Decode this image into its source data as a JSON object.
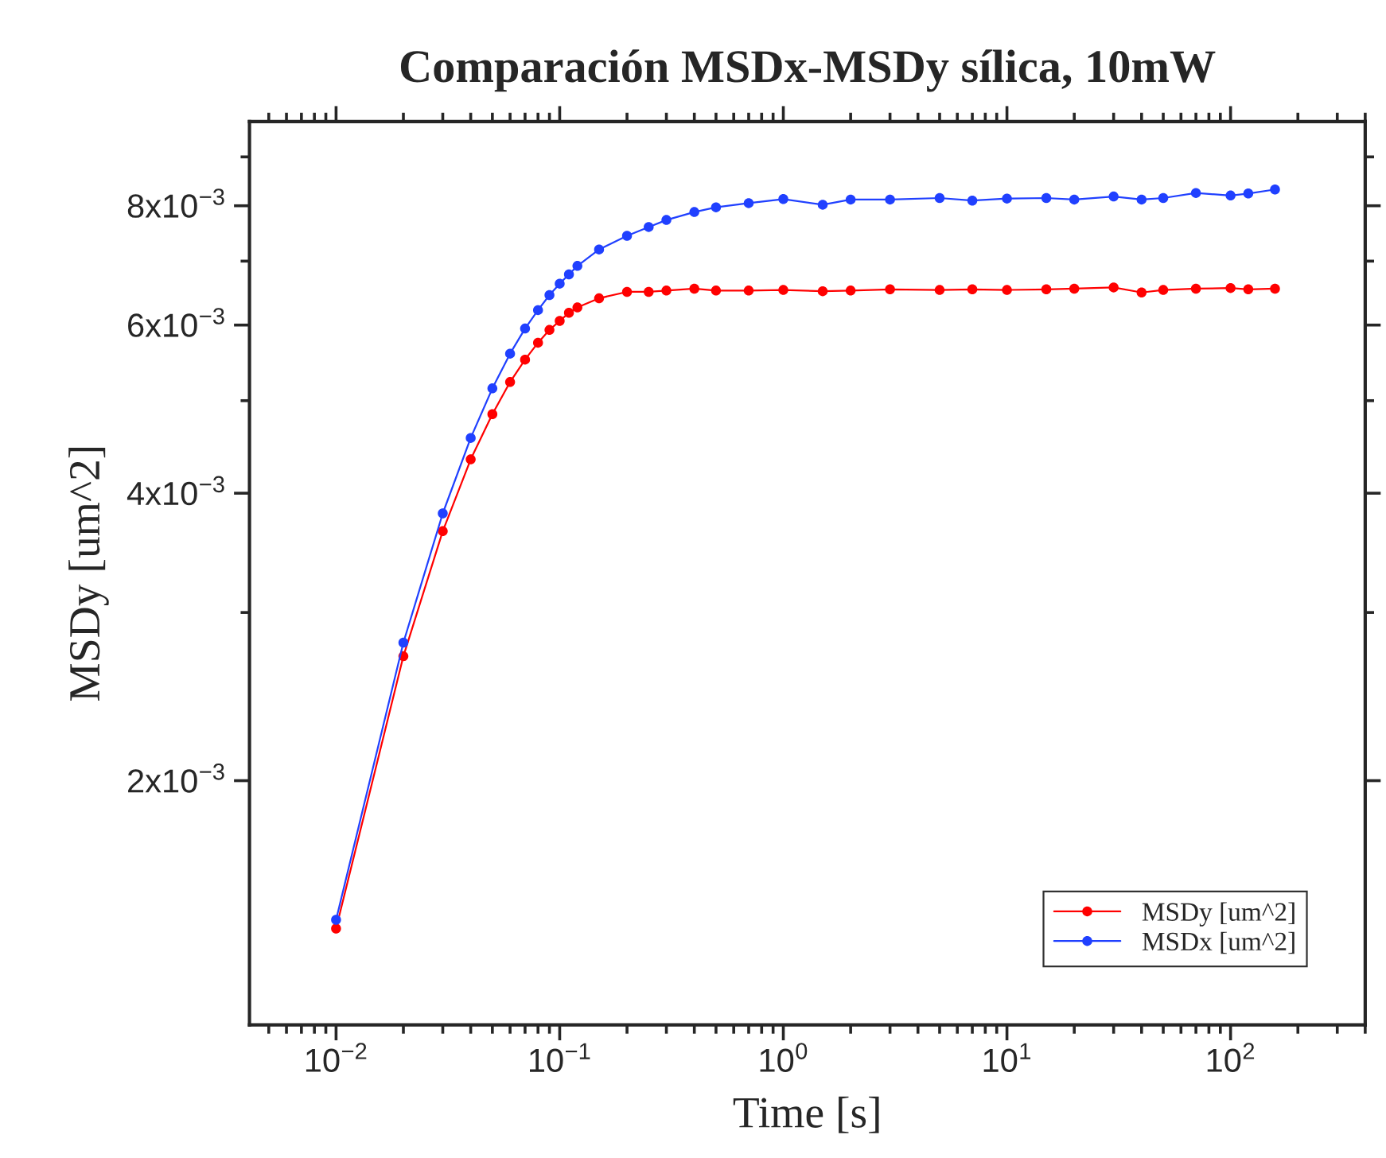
{
  "chart_data": {
    "type": "line",
    "title": "Comparación MSDx-MSDy sílica, 10mW",
    "xlabel": "Time [s]",
    "ylabel": "MSDy [um^2]",
    "x": [
      0.01,
      0.02,
      0.03,
      0.04,
      0.05,
      0.06,
      0.07,
      0.08,
      0.09,
      0.1,
      0.11,
      0.12,
      0.15,
      0.2,
      0.25,
      0.3,
      0.4,
      0.5,
      0.7,
      1,
      1.5,
      2,
      3,
      5,
      7,
      10,
      15,
      20,
      30,
      40,
      50,
      70,
      100,
      120,
      158
    ],
    "series": [
      {
        "name": "MSDy [um^2]",
        "color": "#ff0000",
        "values": [
          0.0014,
          0.0027,
          0.00365,
          0.00434,
          0.00484,
          0.00523,
          0.00552,
          0.00575,
          0.00593,
          0.00606,
          0.00618,
          0.00626,
          0.0064,
          0.0065,
          0.0065,
          0.00652,
          0.00655,
          0.00652,
          0.00652,
          0.00653,
          0.00651,
          0.00652,
          0.00654,
          0.00653,
          0.00654,
          0.00653,
          0.00654,
          0.00655,
          0.00657,
          0.00649,
          0.00653,
          0.00655,
          0.00656,
          0.00654,
          0.00655
        ]
      },
      {
        "name": "MSDx [um^2]",
        "color": "#2040ff",
        "values": [
          0.00143,
          0.00279,
          0.00381,
          0.00457,
          0.00515,
          0.0056,
          0.00595,
          0.00622,
          0.00645,
          0.00663,
          0.00678,
          0.00692,
          0.0072,
          0.00744,
          0.0076,
          0.00773,
          0.00788,
          0.00797,
          0.00805,
          0.00813,
          0.00802,
          0.00812,
          0.00812,
          0.00815,
          0.0081,
          0.00814,
          0.00815,
          0.00812,
          0.00818,
          0.00812,
          0.00815,
          0.00825,
          0.0082,
          0.00824,
          0.00832
        ]
      }
    ],
    "log": "xy",
    "marker": "circle",
    "line_style": "solid",
    "grid": false,
    "legend": "bottom right",
    "xlim": [
      0.0041,
      400
    ],
    "ylim": [
      0.00111,
      0.0098
    ],
    "xticks": [
      {
        "value": 0.01,
        "label": "10$^{−2}$"
      },
      {
        "value": 0.1,
        "label": "10$^{−1}$"
      },
      {
        "value": 1,
        "label": "10$^{0}$"
      },
      {
        "value": 10,
        "label": "10$^{1}$"
      },
      {
        "value": 100,
        "label": "10$^{2}$"
      }
    ],
    "yticks": [
      {
        "value": 0.002,
        "label": "2x10$^{−3}$"
      },
      {
        "value": 0.004,
        "label": "4x10$^{−3}$"
      },
      {
        "value": 0.006,
        "label": "6x10$^{−3}$"
      },
      {
        "value": 0.008,
        "label": "8x10$^{−3}$"
      }
    ]
  }
}
